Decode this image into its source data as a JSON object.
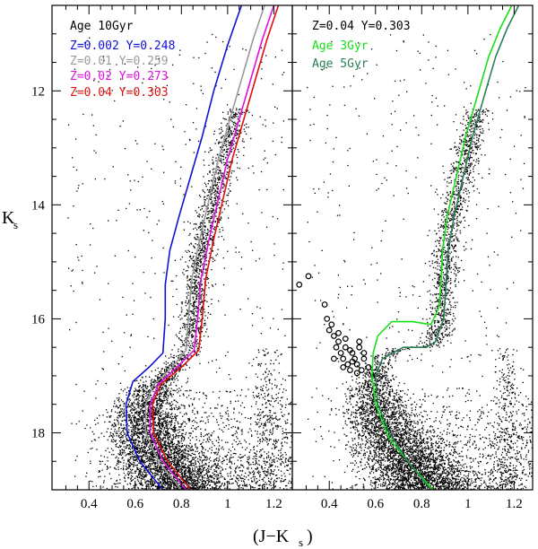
{
  "chart_data": [
    {
      "type": "scatter",
      "panel": "left",
      "xlabel": "(J−K",
      "xlabel_sub": "s",
      "ylabel": "K",
      "ylabel_sub": "s",
      "xlim": [
        0.24,
        1.28
      ],
      "ylim": [
        19.0,
        10.5
      ],
      "y_inverted": true,
      "x_ticks": [
        0.4,
        0.6,
        0.8,
        1,
        1.2
      ],
      "x_tick_labels": [
        "0.4",
        "0.6",
        "0.8",
        "1",
        "1.2"
      ],
      "y_ticks": [
        12,
        14,
        16,
        18
      ],
      "y_tick_labels": [
        "12",
        "14",
        "16",
        "18"
      ],
      "legend_header": "Age 10Gyr",
      "legend_placement": "top-left",
      "series": [
        {
          "name": "Z=0.002 Y=0.248",
          "color": "#1010d8",
          "x": [
            0.72,
            0.62,
            0.565,
            0.56,
            0.59,
            0.66,
            0.72,
            0.73,
            0.73,
            0.75,
            0.79,
            0.84,
            0.89,
            0.94,
            1.0,
            1.06
          ],
          "y": [
            19.0,
            18.5,
            18.0,
            17.5,
            17.1,
            16.85,
            16.6,
            16.0,
            15.4,
            14.8,
            14.2,
            13.5,
            12.8,
            12.0,
            11.2,
            10.5
          ]
        },
        {
          "name": "Z=0.01 Y=0.259",
          "color": "#9a9a9a",
          "x": [
            0.8,
            0.7,
            0.645,
            0.645,
            0.68,
            0.76,
            0.82,
            0.83,
            0.845,
            0.88,
            0.92,
            0.96,
            1.01,
            1.06,
            1.11,
            1.16
          ],
          "y": [
            19.0,
            18.5,
            18.0,
            17.5,
            17.15,
            16.85,
            16.55,
            16.0,
            15.3,
            14.6,
            13.9,
            13.2,
            12.5,
            11.8,
            11.1,
            10.5
          ]
        },
        {
          "name": "Z=0.02 Y=0.273",
          "color": "#e010e0",
          "x": [
            0.82,
            0.72,
            0.665,
            0.665,
            0.7,
            0.78,
            0.855,
            0.87,
            0.885,
            0.92,
            0.96,
            1.0,
            1.05,
            1.1,
            1.15,
            1.2
          ],
          "y": [
            19.0,
            18.5,
            18.0,
            17.5,
            17.15,
            16.85,
            16.55,
            16.0,
            15.3,
            14.6,
            13.9,
            13.2,
            12.5,
            11.8,
            11.1,
            10.5
          ]
        },
        {
          "name": "Z=0.04 Y=0.303",
          "color": "#e01010",
          "x": [
            0.84,
            0.74,
            0.68,
            0.675,
            0.71,
            0.8,
            0.875,
            0.89,
            0.905,
            0.94,
            0.98,
            1.02,
            1.07,
            1.12,
            1.17,
            1.22
          ],
          "y": [
            19.0,
            18.5,
            18.0,
            17.5,
            17.15,
            16.85,
            16.55,
            16.0,
            15.3,
            14.6,
            13.9,
            13.2,
            12.5,
            11.8,
            11.1,
            10.5
          ]
        }
      ]
    },
    {
      "type": "scatter",
      "panel": "right",
      "xlabel": "(J−K",
      "xlabel_sub": "s",
      "xlim": [
        0.24,
        1.28
      ],
      "ylim": [
        19.0,
        10.5
      ],
      "y_inverted": true,
      "x_ticks": [
        0.4,
        0.6,
        0.8,
        1,
        1.2
      ],
      "x_tick_labels": [
        "0.4",
        "0.6",
        "0.8",
        "1",
        "1.2"
      ],
      "legend_header": "Z=0.04 Y=0.303",
      "legend_placement": "top-left",
      "series": [
        {
          "name": "Age 3Gyr",
          "color": "#18e018",
          "x": [
            0.85,
            0.76,
            0.66,
            0.6,
            0.585,
            0.59,
            0.61,
            0.67,
            0.76,
            0.84,
            0.875,
            0.885,
            0.89,
            0.91,
            0.95,
            0.99,
            1.04,
            1.09,
            1.14,
            1.19
          ],
          "y": [
            19.0,
            18.6,
            18.1,
            17.5,
            17.0,
            16.6,
            16.3,
            16.05,
            16.05,
            16.1,
            15.8,
            15.3,
            14.8,
            14.2,
            13.5,
            12.8,
            12.1,
            11.4,
            10.9,
            10.5
          ]
        },
        {
          "name": "Age 5Gyr",
          "color": "#2a7f55",
          "x": [
            0.84,
            0.74,
            0.66,
            0.61,
            0.6,
            0.63,
            0.72,
            0.82,
            0.86,
            0.895,
            0.905,
            0.915,
            0.94,
            0.98,
            1.02,
            1.07,
            1.12,
            1.17,
            1.22
          ],
          "y": [
            19.0,
            18.5,
            18.0,
            17.5,
            17.0,
            16.7,
            16.5,
            16.5,
            16.4,
            16.0,
            15.4,
            14.8,
            14.2,
            13.5,
            12.8,
            12.1,
            11.4,
            10.9,
            10.5
          ]
        }
      ],
      "highlighted_points": {
        "marker": "open circle",
        "x": [
          0.27,
          0.31,
          0.38,
          0.39,
          0.41,
          0.42,
          0.43,
          0.44,
          0.45,
          0.46,
          0.47,
          0.48,
          0.49,
          0.5,
          0.51,
          0.52,
          0.53,
          0.54,
          0.55,
          0.4,
          0.44,
          0.47,
          0.5,
          0.53,
          0.42,
          0.46,
          0.49,
          0.52,
          0.55,
          0.57
        ],
        "y": [
          15.4,
          15.25,
          15.75,
          16.0,
          16.1,
          16.3,
          16.5,
          16.4,
          16.6,
          16.7,
          16.5,
          16.8,
          16.9,
          16.6,
          16.7,
          16.8,
          16.5,
          16.9,
          16.7,
          16.2,
          16.25,
          16.35,
          16.75,
          16.4,
          16.7,
          16.85,
          16.55,
          16.95,
          16.6,
          16.85
        ]
      }
    }
  ],
  "stars": {
    "description": "dense field-star scatter (black dots) in both panels",
    "color": "#000000"
  }
}
